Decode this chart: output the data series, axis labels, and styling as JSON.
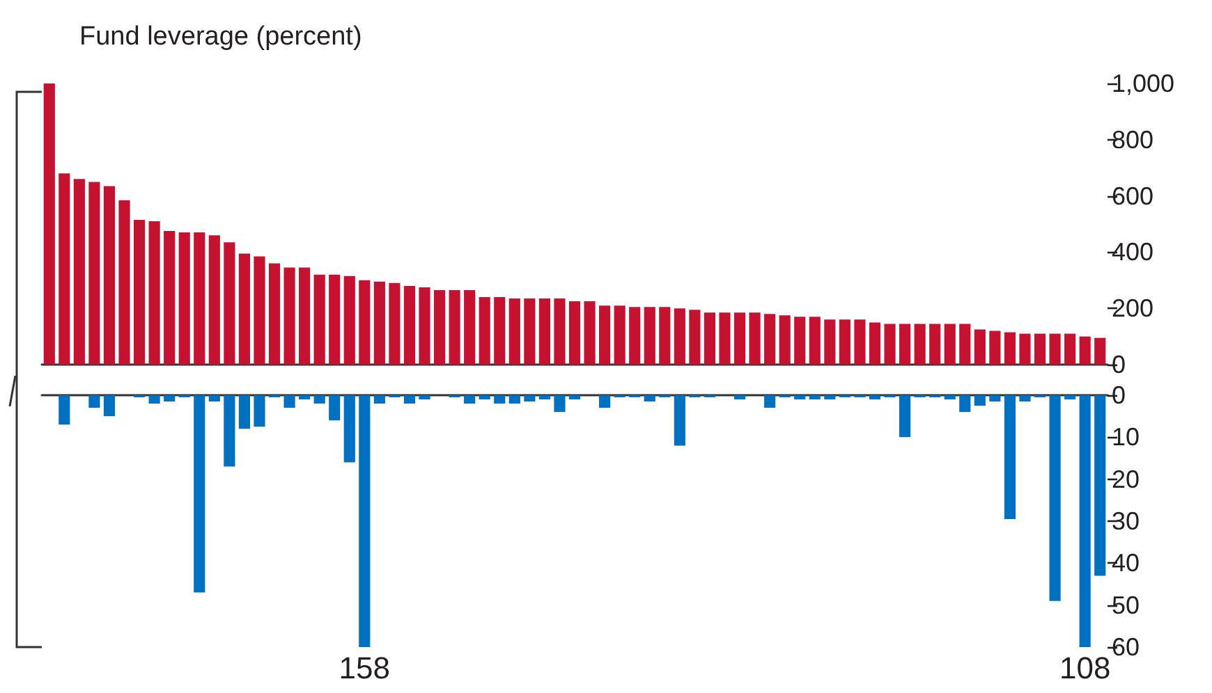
{
  "chart_data": [
    {
      "type": "bar",
      "title": "Fund leverage (percent)",
      "categories": [
        null,
        null,
        null,
        null,
        null,
        null,
        null,
        null,
        null,
        null,
        null,
        null,
        null,
        null,
        null,
        null,
        null,
        null,
        null,
        null,
        null,
        null,
        null,
        null,
        null,
        null,
        null,
        null,
        null,
        null,
        null,
        null,
        null,
        null,
        null,
        null,
        null,
        null,
        null,
        null,
        null,
        null,
        null,
        null,
        null,
        null,
        null,
        null,
        null,
        null,
        null,
        null,
        null,
        null,
        null,
        null,
        null,
        null,
        null,
        null,
        null,
        null,
        null,
        null,
        null,
        null,
        null,
        null,
        null,
        null,
        null
      ],
      "series": [
        {
          "color": "#c41230",
          "values": [
            1000,
            680,
            660,
            650,
            635,
            585,
            515,
            510,
            475,
            470,
            470,
            460,
            435,
            395,
            385,
            360,
            345,
            345,
            320,
            320,
            315,
            300,
            295,
            290,
            280,
            275,
            265,
            265,
            265,
            240,
            240,
            235,
            235,
            235,
            235,
            225,
            225,
            210,
            210,
            205,
            205,
            205,
            200,
            195,
            185,
            185,
            185,
            185,
            180,
            175,
            170,
            170,
            160,
            160,
            160,
            150,
            145,
            145,
            145,
            145,
            145,
            145,
            125,
            120,
            115,
            110,
            110,
            110,
            110,
            100,
            95
          ]
        }
      ],
      "ylim": [
        0,
        1000
      ],
      "yticks": [
        0,
        200,
        400,
        600,
        800,
        {
          "value": 1000,
          "label": "1,000"
        }
      ],
      "tick_labels": "y",
      "grid": false
    },
    {
      "type": "bar",
      "categories": [
        null,
        null,
        null,
        null,
        null,
        null,
        null,
        null,
        null,
        null,
        null,
        null,
        null,
        null,
        null,
        null,
        null,
        null,
        null,
        null,
        null,
        null,
        null,
        null,
        null,
        null,
        null,
        null,
        null,
        null,
        null,
        null,
        null,
        null,
        null,
        null,
        null,
        null,
        null,
        null,
        null,
        null,
        null,
        null,
        null,
        null,
        null,
        null,
        null,
        null,
        null,
        null,
        null,
        null,
        null,
        null,
        null,
        null,
        null,
        null,
        null,
        null,
        null,
        null,
        null,
        null,
        null,
        null,
        null,
        null,
        null
      ],
      "series": [
        {
          "color": "#0070c0",
          "values": [
            null,
            7,
            null,
            3,
            5,
            null,
            0.5,
            2,
            1.5,
            0.5,
            47,
            1.5,
            17,
            8,
            7.5,
            0.5,
            3,
            1,
            2,
            6,
            16,
            60,
            2,
            0.5,
            2,
            1,
            null,
            0.5,
            2,
            1,
            2,
            2,
            1.5,
            1,
            4,
            1,
            null,
            3,
            0.5,
            0.5,
            1.5,
            0.5,
            12,
            0.5,
            0.5,
            null,
            1,
            null,
            3,
            0.5,
            1,
            1,
            1,
            0.5,
            0.5,
            1,
            0.5,
            10,
            0.5,
            0.5,
            1,
            4,
            2.5,
            1.5,
            29.5,
            1.5,
            0.5,
            49,
            1,
            60,
            43
          ]
        }
      ],
      "ylim": [
        60,
        0
      ],
      "yticks": [
        0,
        10,
        20,
        30,
        40,
        50,
        60
      ],
      "tick_labels": "y",
      "grid": false,
      "annotations": [
        {
          "text": "158",
          "y": 60
        },
        {
          "text": "108",
          "y": 60
        }
      ]
    }
  ]
}
